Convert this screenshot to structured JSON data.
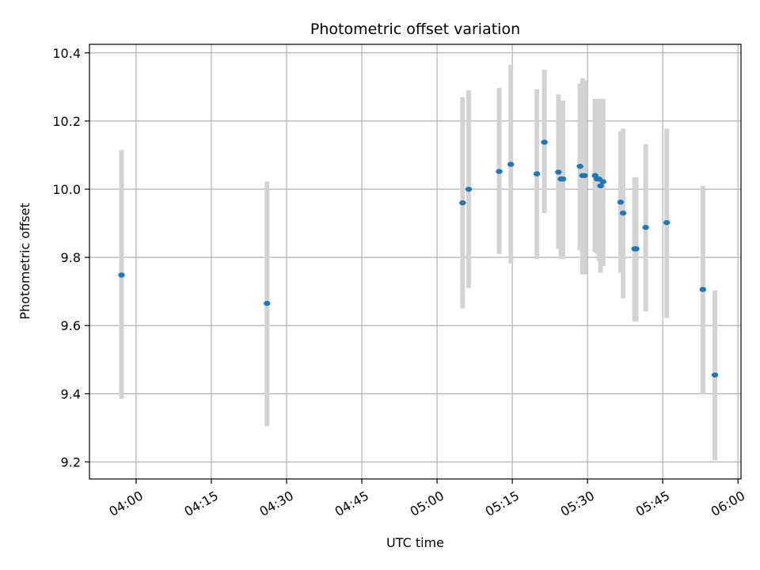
{
  "chart_data": {
    "type": "scatter",
    "title": "Photometric offset variation",
    "xlabel": "UTC time",
    "ylabel": "Photometric offset",
    "grid": true,
    "legend": "none",
    "x_ticks": [
      "04:00",
      "04:15",
      "04:30",
      "04:45",
      "05:00",
      "05:15",
      "05:30",
      "05:45",
      "06:00"
    ],
    "x_tick_minutes": [
      240,
      255,
      270,
      285,
      300,
      315,
      330,
      345,
      360
    ],
    "xlim_minutes": [
      230.7,
      360.6
    ],
    "y_ticks": [
      "9.2",
      "9.4",
      "9.6",
      "9.8",
      "10.0",
      "10.2",
      "10.4"
    ],
    "y_tick_values": [
      9.2,
      9.4,
      9.6,
      9.8,
      10.0,
      10.2,
      10.4
    ],
    "ylim": [
      9.15,
      10.425
    ],
    "colors": {
      "point": "#1f77b4",
      "errorbar": "#d3d3d3",
      "grid": "#b0b0b0"
    },
    "points": [
      {
        "time": "03:57",
        "minute": 237.1,
        "y": 9.748,
        "ylow": 9.385,
        "yhigh": 10.115
      },
      {
        "time": "04:26",
        "minute": 266.1,
        "y": 9.665,
        "ylow": 9.305,
        "yhigh": 10.022
      },
      {
        "time": "05:05",
        "minute": 305.1,
        "y": 9.96,
        "ylow": 9.65,
        "yhigh": 10.27
      },
      {
        "time": "05:06",
        "minute": 306.3,
        "y": 10.0,
        "ylow": 9.71,
        "yhigh": 10.29
      },
      {
        "time": "05:12",
        "minute": 312.4,
        "y": 10.052,
        "ylow": 9.81,
        "yhigh": 10.297
      },
      {
        "time": "05:14",
        "minute": 314.7,
        "y": 10.073,
        "ylow": 9.782,
        "yhigh": 10.365
      },
      {
        "time": "05:19",
        "minute": 319.9,
        "y": 10.045,
        "ylow": 9.795,
        "yhigh": 10.293
      },
      {
        "time": "05:21",
        "minute": 321.4,
        "y": 10.138,
        "ylow": 9.93,
        "yhigh": 10.35
      },
      {
        "time": "05:24",
        "minute": 324.2,
        "y": 10.05,
        "ylow": 9.825,
        "yhigh": 10.278
      },
      {
        "time": "05:24",
        "minute": 324.7,
        "y": 10.03,
        "ylow": 9.795,
        "yhigh": 10.26
      },
      {
        "time": "05:25",
        "minute": 325.1,
        "y": 10.03,
        "ylow": 9.795,
        "yhigh": 10.26
      },
      {
        "time": "05:28",
        "minute": 328.5,
        "y": 10.067,
        "ylow": 9.82,
        "yhigh": 10.31
      },
      {
        "time": "05:29",
        "minute": 329.0,
        "y": 10.04,
        "ylow": 9.75,
        "yhigh": 10.325
      },
      {
        "time": "05:29",
        "minute": 329.4,
        "y": 10.04,
        "ylow": 9.75,
        "yhigh": 10.32
      },
      {
        "time": "05:31",
        "minute": 331.5,
        "y": 10.04,
        "ylow": 9.815,
        "yhigh": 10.265
      },
      {
        "time": "05:31",
        "minute": 331.9,
        "y": 10.03,
        "ylow": 9.81,
        "yhigh": 10.265
      },
      {
        "time": "05:32",
        "minute": 332.3,
        "y": 10.03,
        "ylow": 9.79,
        "yhigh": 10.265
      },
      {
        "time": "05:32",
        "minute": 332.6,
        "y": 10.01,
        "ylow": 9.755,
        "yhigh": 10.265
      },
      {
        "time": "05:33",
        "minute": 333.1,
        "y": 10.022,
        "ylow": 9.775,
        "yhigh": 10.265
      },
      {
        "time": "05:36",
        "minute": 336.6,
        "y": 9.962,
        "ylow": 9.755,
        "yhigh": 10.17
      },
      {
        "time": "05:37",
        "minute": 337.1,
        "y": 9.93,
        "ylow": 9.68,
        "yhigh": 10.178
      },
      {
        "time": "05:39",
        "minute": 339.4,
        "y": 9.825,
        "ylow": 9.612,
        "yhigh": 10.035
      },
      {
        "time": "05:39",
        "minute": 339.7,
        "y": 9.825,
        "ylow": 9.612,
        "yhigh": 10.035
      },
      {
        "time": "05:41",
        "minute": 341.6,
        "y": 9.888,
        "ylow": 9.642,
        "yhigh": 10.132
      },
      {
        "time": "05:45",
        "minute": 345.8,
        "y": 9.902,
        "ylow": 9.622,
        "yhigh": 10.178
      },
      {
        "time": "05:53",
        "minute": 353.0,
        "y": 9.706,
        "ylow": 9.398,
        "yhigh": 10.01
      },
      {
        "time": "05:55",
        "minute": 355.4,
        "y": 9.455,
        "ylow": 9.205,
        "yhigh": 9.703
      }
    ]
  }
}
